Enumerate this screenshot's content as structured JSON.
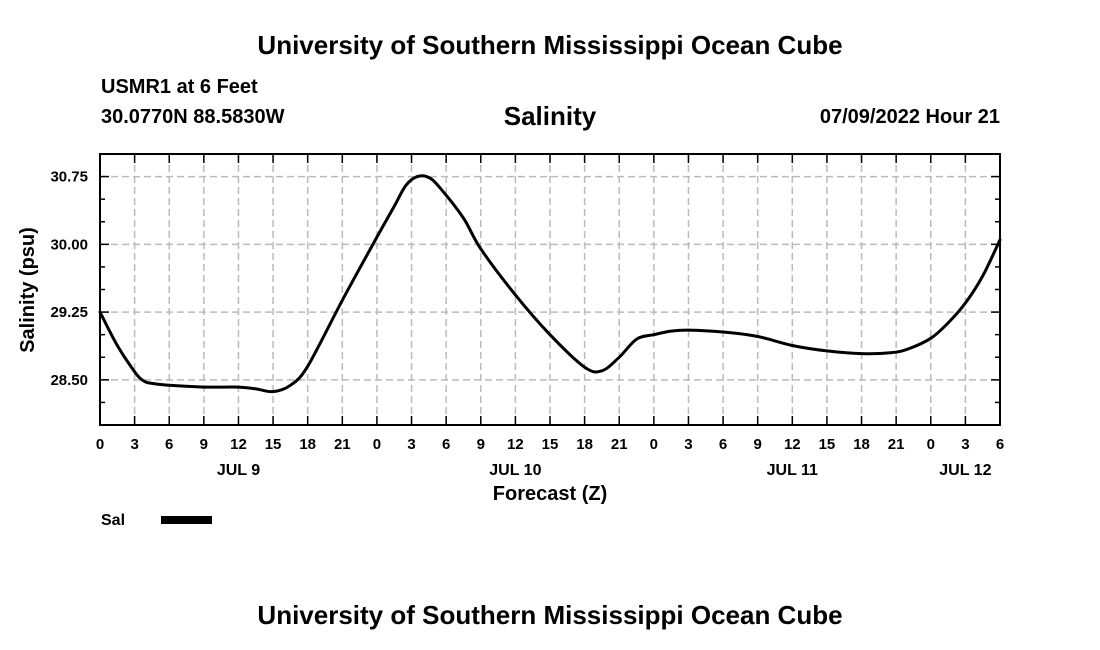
{
  "page_title": "University of Southern Mississippi Ocean Cube",
  "footer_title": "University of Southern Mississippi Ocean Cube",
  "header": {
    "station": "USMR1 at 6 Feet",
    "coords": "30.0770N  88.5830W",
    "date": "07/09/2022 Hour 21"
  },
  "chart_data": {
    "type": "line",
    "title": "Salinity",
    "xlabel": "Forecast (Z)",
    "ylabel": "Salinity (psu)",
    "xlim": [
      0,
      78
    ],
    "ylim": [
      28.0,
      31.0
    ],
    "grid": true,
    "x_tick_labels": [
      "0",
      "3",
      "6",
      "9",
      "12",
      "15",
      "18",
      "21",
      "0",
      "3",
      "6",
      "9",
      "12",
      "15",
      "18",
      "21",
      "0",
      "3",
      "6",
      "9",
      "12",
      "15",
      "18",
      "21",
      "0",
      "3",
      "6"
    ],
    "y_ticks": [
      28.5,
      29.25,
      30.0,
      30.75
    ],
    "y_tick_labels": [
      "28.50",
      "29.25",
      "30.00",
      "30.75"
    ],
    "day_labels": [
      {
        "label": "JUL 9",
        "x": 12
      },
      {
        "label": "JUL 10",
        "x": 36
      },
      {
        "label": "JUL 11",
        "x": 60
      },
      {
        "label": "JUL 12",
        "x": 75
      }
    ],
    "legend": [
      {
        "name": "Sal",
        "color": "#000000"
      }
    ],
    "series": [
      {
        "name": "Sal",
        "color": "#000000",
        "x": [
          0,
          1.5,
          3,
          3.75,
          4.5,
          6,
          9,
          12,
          13.5,
          15,
          16.5,
          18,
          21,
          24,
          25.5,
          26.5,
          27.5,
          28.5,
          29.5,
          31.5,
          33,
          36,
          39,
          42,
          43.5,
          45,
          46.5,
          48,
          49.5,
          51,
          54,
          57,
          60,
          63,
          66,
          68.5,
          70,
          72,
          73.5,
          75,
          76.5,
          78
        ],
        "y": [
          29.25,
          28.88,
          28.59,
          28.49,
          28.46,
          28.44,
          28.42,
          28.42,
          28.4,
          28.37,
          28.44,
          28.65,
          29.38,
          30.08,
          30.42,
          30.65,
          30.75,
          30.74,
          30.62,
          30.29,
          29.95,
          29.44,
          29.0,
          28.64,
          28.6,
          28.75,
          28.95,
          29.0,
          29.04,
          29.05,
          29.03,
          28.98,
          28.88,
          28.82,
          28.79,
          28.8,
          28.84,
          28.96,
          29.13,
          29.35,
          29.65,
          30.05
        ]
      }
    ]
  }
}
